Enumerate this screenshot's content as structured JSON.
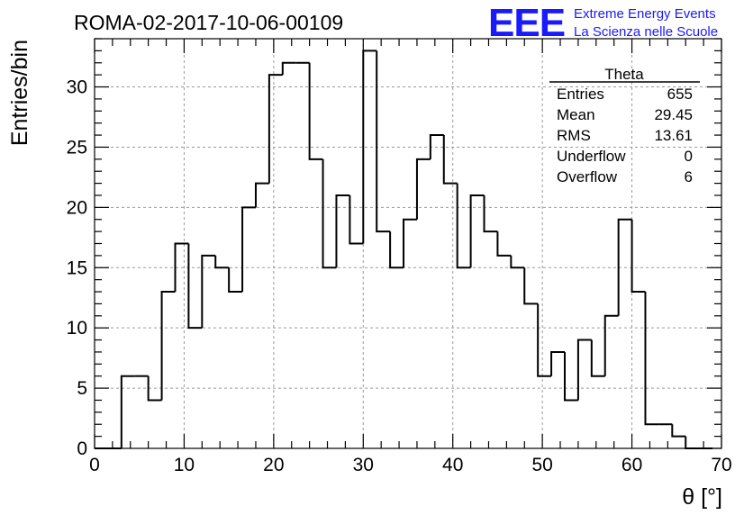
{
  "header": {
    "run_title": "ROMA-02-2017-10-06-00109",
    "logo": "EEE",
    "logo_line1": "Extreme Energy Events",
    "logo_line2": "La Scienza nelle Scuole",
    "logo_color": "#1a1aff"
  },
  "stats_box": {
    "title": "Theta",
    "rows": [
      {
        "label": "Entries",
        "value": "655"
      },
      {
        "label": "Mean",
        "value": "29.45"
      },
      {
        "label": "RMS",
        "value": "13.61"
      },
      {
        "label": "Underflow",
        "value": "0"
      },
      {
        "label": "Overflow",
        "value": "6"
      }
    ]
  },
  "chart_data": {
    "type": "histogram",
    "xlabel": "θ [°]",
    "ylabel": "Entries/bin",
    "xlim": [
      0,
      70
    ],
    "ylim": [
      0,
      34
    ],
    "grid": true,
    "bin_width": 1.5,
    "x_ticks": [
      0,
      10,
      20,
      30,
      40,
      50,
      60,
      70
    ],
    "y_ticks": [
      0,
      5,
      10,
      15,
      20,
      25,
      30
    ],
    "bin_left_edges": [
      0,
      1.5,
      3,
      4.5,
      6,
      7.5,
      9,
      10.5,
      12,
      13.5,
      15,
      16.5,
      18,
      19.5,
      21,
      22.5,
      24,
      25.5,
      27,
      28.5,
      30,
      31.5,
      33,
      34.5,
      36,
      37.5,
      39,
      40.5,
      42,
      43.5,
      45,
      46.5,
      48,
      49.5,
      51,
      52.5,
      54,
      55.5,
      57,
      58.5,
      60,
      61.5,
      63,
      64.5,
      66,
      67.5
    ],
    "counts": [
      0,
      0,
      6,
      6,
      4,
      13,
      17,
      10,
      16,
      15,
      13,
      20,
      22,
      31,
      32,
      32,
      24,
      15,
      21,
      17,
      33,
      18,
      15,
      19,
      24,
      26,
      22,
      15,
      21,
      18,
      16,
      15,
      12,
      6,
      8,
      4,
      9,
      6,
      11,
      19,
      13,
      2,
      2,
      1,
      0,
      0
    ],
    "series_color": "#000000"
  }
}
